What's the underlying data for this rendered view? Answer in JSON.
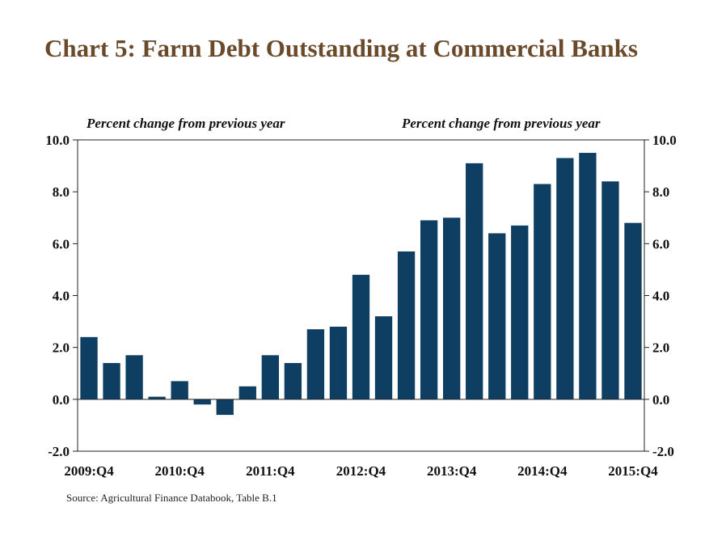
{
  "title": "Chart 5: Farm Debt Outstanding at Commercial Banks",
  "source": "Source: Agricultural Finance Databook, Table B.1",
  "colors": {
    "bar": "#0e3e62",
    "title": "#6b4a2b"
  },
  "chart_data": {
    "type": "bar",
    "ylabel_left": "Percent change from previous year",
    "ylabel_right": "Percent change from previous year",
    "ylim": [
      -2.0,
      10.0
    ],
    "yticks": [
      "10.0",
      "8.0",
      "6.0",
      "4.0",
      "2.0",
      "0.0",
      "-2.0"
    ],
    "yticks_right": [
      "10.0",
      "8.0",
      "6.0",
      "4.0",
      "2.0",
      "0.0",
      "-2.0"
    ],
    "xtick_labels": [
      "2009:Q4",
      "2010:Q4",
      "2011:Q4",
      "2012:Q4",
      "2013:Q4",
      "2014:Q4",
      "2015:Q4"
    ],
    "categories": [
      "2009:Q4",
      "2010:Q1",
      "2010:Q2",
      "2010:Q3",
      "2010:Q4",
      "2011:Q1",
      "2011:Q2",
      "2011:Q3",
      "2011:Q4",
      "2012:Q1",
      "2012:Q2",
      "2012:Q3",
      "2012:Q4",
      "2013:Q1",
      "2013:Q2",
      "2013:Q3",
      "2013:Q4",
      "2014:Q1",
      "2014:Q2",
      "2014:Q3",
      "2014:Q4",
      "2015:Q1",
      "2015:Q2",
      "2015:Q3",
      "2015:Q4"
    ],
    "values": [
      2.4,
      1.4,
      1.7,
      0.1,
      0.7,
      -0.2,
      -0.6,
      0.5,
      1.7,
      1.4,
      2.7,
      2.8,
      4.8,
      3.2,
      5.7,
      6.9,
      7.0,
      9.1,
      6.4,
      6.7,
      8.3,
      9.3,
      9.5,
      8.4,
      6.8
    ],
    "grid": false,
    "legend": "none"
  }
}
